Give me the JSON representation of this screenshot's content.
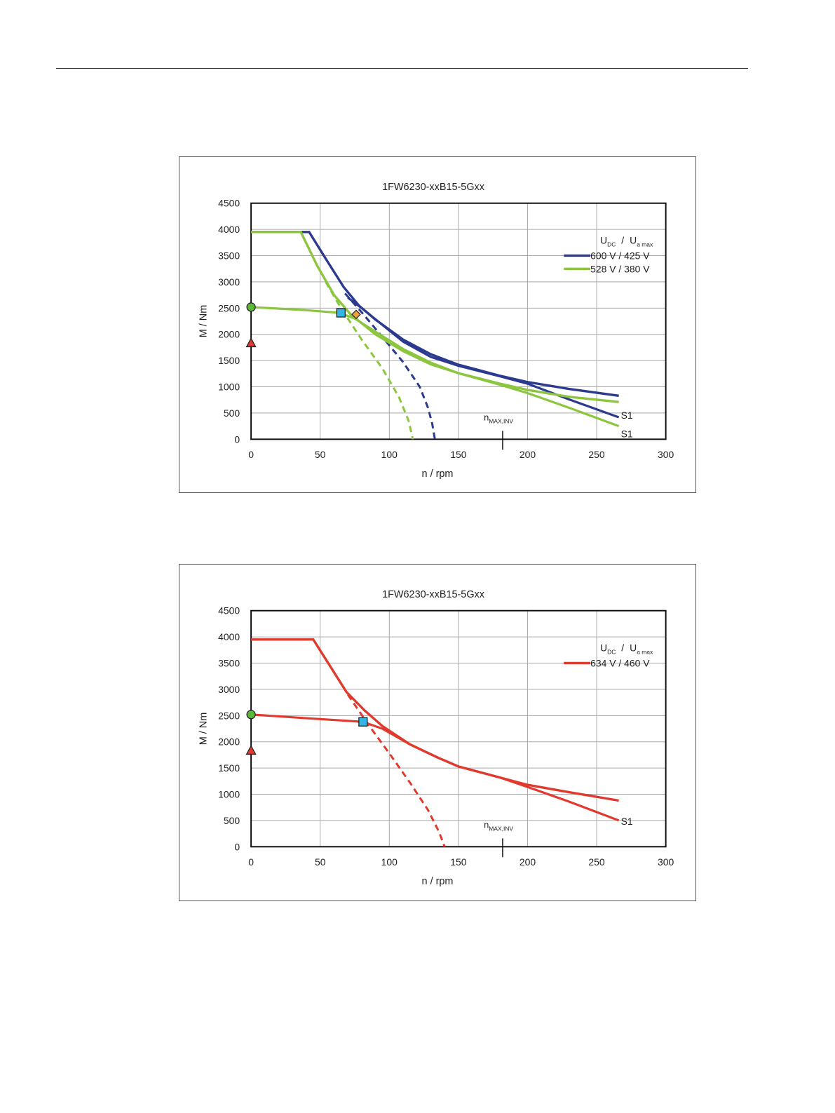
{
  "page": {},
  "chart_data": [
    {
      "type": "line",
      "title": "1FW6230-xxB15-5Gxx",
      "xlabel": "n / rpm",
      "ylabel": "M / Nm",
      "xlim": [
        0,
        300
      ],
      "ylim": [
        0,
        4500
      ],
      "x_ticks": [
        "0",
        "50",
        "100",
        "150",
        "200",
        "250",
        "300"
      ],
      "y_ticks": [
        "0",
        "500",
        "1000",
        "1500",
        "2000",
        "2500",
        "3000",
        "3500",
        "4000",
        "4500"
      ],
      "grid": true,
      "legend_title": {
        "main1": "U",
        "sub1": "DC",
        "sep": "/",
        "main2": "U",
        "sub2": "a max"
      },
      "legend_placement": "top-right",
      "n_max_label": {
        "main": "n",
        "sub": "MAX,INV",
        "x": 182
      },
      "series": [
        {
          "name": "600 V / 425 V",
          "color": "#2b3a8f",
          "peak": [
            [
              0,
              3950
            ],
            [
              42,
              3950
            ],
            [
              55,
              3400
            ],
            [
              67,
              2900
            ],
            [
              78,
              2550
            ],
            [
              90,
              2280
            ],
            [
              110,
              1900
            ],
            [
              130,
              1620
            ],
            [
              150,
              1420
            ],
            [
              180,
              1210
            ],
            [
              200,
              1090
            ],
            [
              230,
              960
            ],
            [
              266,
              830
            ]
          ],
          "dashed": [
            [
              68,
              2780
            ],
            [
              80,
              2420
            ],
            [
              95,
              1950
            ],
            [
              110,
              1470
            ],
            [
              122,
              1000
            ],
            [
              128,
              600
            ],
            [
              131,
              300
            ],
            [
              133,
              0
            ]
          ],
          "s1": [
            [
              70,
              2700
            ],
            [
              80,
              2500
            ],
            [
              95,
              2180
            ],
            [
              110,
              1860
            ],
            [
              130,
              1570
            ],
            [
              150,
              1400
            ],
            [
              180,
              1200
            ],
            [
              200,
              1060
            ],
            [
              230,
              760
            ],
            [
              266,
              420
            ]
          ],
          "s1_label": "S1"
        },
        {
          "name": "528 V / 380 V",
          "color": "#8cc63f",
          "peak": [
            [
              0,
              3950
            ],
            [
              36,
              3950
            ],
            [
              48,
              3300
            ],
            [
              60,
              2750
            ],
            [
              72,
              2380
            ],
            [
              90,
              2000
            ],
            [
              110,
              1680
            ],
            [
              130,
              1430
            ],
            [
              150,
              1260
            ],
            [
              180,
              1060
            ],
            [
              200,
              940
            ],
            [
              230,
              810
            ],
            [
              266,
              710
            ]
          ],
          "dashed": [
            [
              54,
              3000
            ],
            [
              65,
              2500
            ],
            [
              80,
              1900
            ],
            [
              95,
              1350
            ],
            [
              107,
              800
            ],
            [
              114,
              350
            ],
            [
              117,
              0
            ]
          ],
          "s1": [
            [
              0,
              2520
            ],
            [
              40,
              2460
            ],
            [
              64,
              2410
            ],
            [
              75,
              2300
            ],
            [
              90,
              2050
            ],
            [
              110,
              1720
            ],
            [
              130,
              1460
            ],
            [
              150,
              1260
            ],
            [
              180,
              1040
            ],
            [
              200,
              880
            ],
            [
              230,
              600
            ],
            [
              266,
              250
            ]
          ],
          "s1_label": "S1"
        }
      ],
      "markers": [
        {
          "shape": "circle",
          "x": 0,
          "y": 2520,
          "color": "#5cb83c"
        },
        {
          "shape": "triangle",
          "x": 0,
          "y": 1830,
          "color": "#e03a2f"
        },
        {
          "shape": "square",
          "x": 65,
          "y": 2410,
          "color": "#33b5e5"
        },
        {
          "shape": "diamond",
          "x": 76,
          "y": 2380,
          "color": "#f0a040"
        }
      ]
    },
    {
      "type": "line",
      "title": "1FW6230-xxB15-5Gxx",
      "xlabel": "n / rpm",
      "ylabel": "M / Nm",
      "xlim": [
        0,
        300
      ],
      "ylim": [
        0,
        4500
      ],
      "x_ticks": [
        "0",
        "50",
        "100",
        "150",
        "200",
        "250",
        "300"
      ],
      "y_ticks": [
        "0",
        "500",
        "1000",
        "1500",
        "2000",
        "2500",
        "3000",
        "3500",
        "4000",
        "4500"
      ],
      "grid": true,
      "legend_title": {
        "main1": "U",
        "sub1": "DC",
        "sep": "/",
        "main2": "U",
        "sub2": "a max"
      },
      "legend_placement": "top-right",
      "n_max_label": {
        "main": "n",
        "sub": "MAX,INV",
        "x": 182
      },
      "series": [
        {
          "name": "634 V / 460 V",
          "color": "#e03a2f",
          "peak": [
            [
              0,
              3950
            ],
            [
              45,
              3950
            ],
            [
              57,
              3450
            ],
            [
              69,
              2950
            ],
            [
              82,
              2600
            ],
            [
              95,
              2300
            ],
            [
              115,
              1950
            ],
            [
              135,
              1700
            ],
            [
              150,
              1530
            ],
            [
              180,
              1320
            ],
            [
              200,
              1180
            ],
            [
              230,
              1040
            ],
            [
              266,
              880
            ]
          ],
          "dashed": [
            [
              70,
              2900
            ],
            [
              85,
              2320
            ],
            [
              100,
              1780
            ],
            [
              115,
              1220
            ],
            [
              128,
              700
            ],
            [
              136,
              280
            ],
            [
              140,
              0
            ]
          ],
          "s1": [
            [
              0,
              2520
            ],
            [
              40,
              2450
            ],
            [
              81,
              2380
            ],
            [
              95,
              2250
            ],
            [
              115,
              1950
            ],
            [
              135,
              1700
            ],
            [
              150,
              1530
            ],
            [
              180,
              1320
            ],
            [
              200,
              1140
            ],
            [
              230,
              860
            ],
            [
              266,
              500
            ]
          ],
          "s1_label": "S1"
        }
      ],
      "markers": [
        {
          "shape": "circle",
          "x": 0,
          "y": 2520,
          "color": "#5cb83c"
        },
        {
          "shape": "triangle",
          "x": 0,
          "y": 1830,
          "color": "#e03a2f"
        },
        {
          "shape": "square",
          "x": 81,
          "y": 2380,
          "color": "#33b5e5"
        }
      ]
    }
  ]
}
